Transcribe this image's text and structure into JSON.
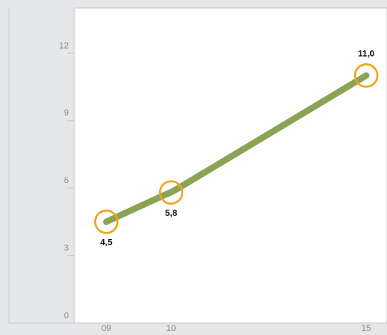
{
  "chart_data": {
    "type": "line",
    "title": "",
    "xlabel": "",
    "ylabel": "",
    "ylim": [
      0,
      14
    ],
    "yticks": [
      0,
      3,
      6,
      9,
      12
    ],
    "x": [
      "09",
      "10",
      "15"
    ],
    "x_positions": [
      2009,
      2010,
      2015
    ],
    "series": [
      {
        "values": [
          4.5,
          5.8,
          11.0
        ],
        "labels": [
          "4,5",
          "5,8",
          "11,0"
        ]
      }
    ],
    "grid": false,
    "colors": {
      "line": "#8aa354",
      "marker": "#f2a31d",
      "plot_bg": "#ffffff",
      "page_bg": "#e6e7e8"
    }
  }
}
